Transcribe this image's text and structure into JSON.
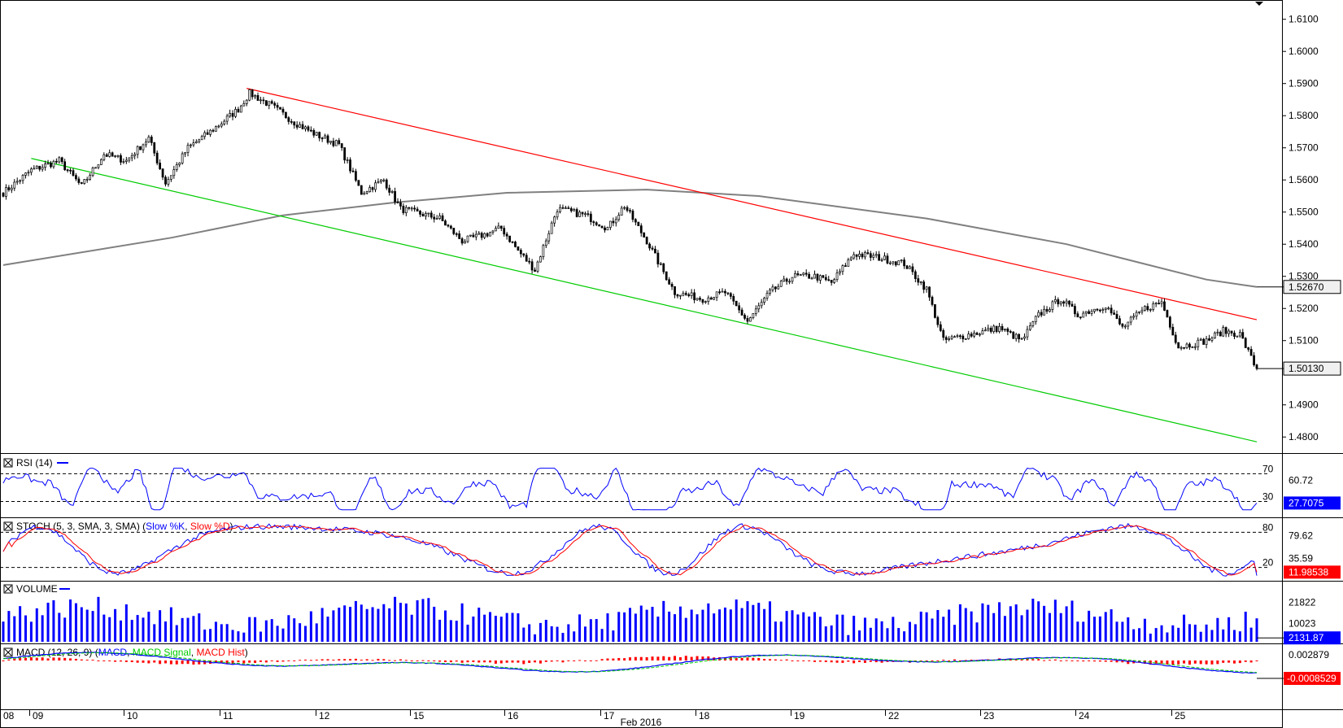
{
  "chart_data": {
    "type": "candlestick",
    "x_axis": {
      "labels": [
        "08",
        "09",
        "10",
        "11",
        "12",
        "15",
        "16",
        "17",
        "18",
        "19",
        "22",
        "23",
        "24",
        "25"
      ],
      "month_label": "Feb 2016"
    },
    "price_panel": {
      "ylim": [
        1.475,
        1.616
      ],
      "tick_labels": [
        "1.6100",
        "1.6000",
        "1.5900",
        "1.5800",
        "1.5700",
        "1.5600",
        "1.5500",
        "1.5400",
        "1.5300",
        "1.5200",
        "1.5100",
        "1.4900",
        "1.4800"
      ],
      "tick_values": [
        1.61,
        1.6,
        1.59,
        1.58,
        1.57,
        1.56,
        1.55,
        1.54,
        1.53,
        1.52,
        1.51,
        1.49,
        1.48
      ],
      "last_price_label": "1.50130",
      "moving_average_label": "1.52670",
      "moving_average_color": "#808080",
      "candles": {
        "up_color": "#ffffff",
        "down_color": "#000000",
        "anchors": [
          [
            0,
            1.556
          ],
          [
            10,
            1.563
          ],
          [
            20,
            1.566
          ],
          [
            28,
            1.558
          ],
          [
            36,
            1.568
          ],
          [
            44,
            1.566
          ],
          [
            52,
            1.573
          ],
          [
            58,
            1.559
          ],
          [
            66,
            1.57
          ],
          [
            74,
            1.575
          ],
          [
            84,
            1.582
          ],
          [
            88,
            1.587
          ],
          [
            96,
            1.583
          ],
          [
            104,
            1.578
          ],
          [
            112,
            1.574
          ],
          [
            120,
            1.571
          ],
          [
            128,
            1.556
          ],
          [
            136,
            1.56
          ],
          [
            142,
            1.551
          ],
          [
            156,
            1.548
          ],
          [
            164,
            1.541
          ],
          [
            172,
            1.543
          ],
          [
            178,
            1.545
          ],
          [
            184,
            1.538
          ],
          [
            190,
            1.532
          ],
          [
            198,
            1.551
          ],
          [
            208,
            1.549
          ],
          [
            216,
            1.545
          ],
          [
            222,
            1.552
          ],
          [
            230,
            1.541
          ],
          [
            240,
            1.525
          ],
          [
            250,
            1.523
          ],
          [
            258,
            1.525
          ],
          [
            266,
            1.516
          ],
          [
            274,
            1.525
          ],
          [
            282,
            1.53
          ],
          [
            290,
            1.53
          ],
          [
            296,
            1.528
          ],
          [
            304,
            1.537
          ],
          [
            312,
            1.536
          ],
          [
            322,
            1.534
          ],
          [
            330,
            1.526
          ],
          [
            336,
            1.51
          ],
          [
            346,
            1.512
          ],
          [
            356,
            1.514
          ],
          [
            364,
            1.51
          ],
          [
            370,
            1.518
          ],
          [
            378,
            1.523
          ],
          [
            384,
            1.518
          ],
          [
            394,
            1.521
          ],
          [
            400,
            1.514
          ],
          [
            408,
            1.52
          ],
          [
            414,
            1.522
          ],
          [
            420,
            1.508
          ],
          [
            430,
            1.51
          ],
          [
            436,
            1.513
          ],
          [
            442,
            1.512
          ],
          [
            448,
            1.501
          ]
        ]
      },
      "trend_lines": [
        {
          "name": "upper",
          "color": "#ff0000",
          "from": [
            87,
            1.5885
          ],
          "to": [
            448,
            1.5165
          ]
        },
        {
          "name": "lower",
          "color": "#00cc00",
          "from": [
            10,
            1.5667
          ],
          "to": [
            448,
            1.4785
          ]
        }
      ],
      "sma_points": [
        [
          0,
          1.5335
        ],
        [
          60,
          1.542
        ],
        [
          100,
          1.549
        ],
        [
          140,
          1.553
        ],
        [
          180,
          1.556
        ],
        [
          230,
          1.557
        ],
        [
          270,
          1.555
        ],
        [
          330,
          1.548
        ],
        [
          380,
          1.54
        ],
        [
          430,
          1.529
        ],
        [
          448,
          1.5267
        ]
      ]
    },
    "rsi_panel": {
      "title": "RSI (14)",
      "levels": [
        "70",
        "30"
      ],
      "tick_labels": [
        "60.72"
      ],
      "current_value": "27.7075",
      "value_color": "#0000ff",
      "series_color": "#0000ff"
    },
    "stoch_panel": {
      "title": "STOCH (5, 3, SMA, 3, SMA)",
      "legend": [
        "Slow %K",
        "Slow %D"
      ],
      "colors": [
        "#0000ff",
        "#ff0000"
      ],
      "levels": [
        "80",
        "20"
      ],
      "tick_labels": [
        "79.62",
        "35.59"
      ],
      "current_value": "11.98538"
    },
    "volume_panel": {
      "title": "VOLUME",
      "tick_labels": [
        "21822",
        "10023"
      ],
      "current_value": "2131.87",
      "bar_color": "#0000ff"
    },
    "macd_panel": {
      "title": "MACD (12, 26, 9)",
      "legend": [
        "MACD",
        "MACD Signal",
        "MACD Hist"
      ],
      "colors": [
        "#0000ff",
        "#00cc00",
        "#ff0000"
      ],
      "tick_labels": [
        "0.002879"
      ],
      "current_value": "-0.0008529"
    }
  }
}
